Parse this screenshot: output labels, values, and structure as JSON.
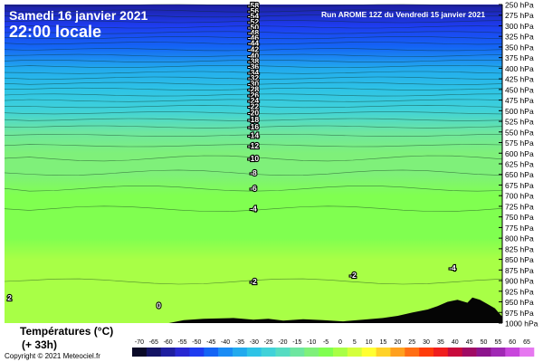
{
  "header": {
    "date": "Samedi 16 janvier 2021",
    "time": "22:00 locale",
    "run": "Run AROME 12Z du Vendredi 15 janvier 2021"
  },
  "footer": {
    "variable": "Températures (°C)",
    "lead": "(+ 33h)",
    "copyright": "Copyright © 2021 Meteociel.fr"
  },
  "chart_data": {
    "type": "heatmap",
    "title": "Températures (°C)",
    "yunit": "hPa",
    "y_levels": [
      250,
      275,
      300,
      325,
      350,
      375,
      400,
      425,
      450,
      475,
      500,
      525,
      550,
      575,
      600,
      625,
      650,
      675,
      700,
      725,
      750,
      775,
      800,
      825,
      850,
      875,
      900,
      925,
      950,
      975,
      1000
    ],
    "y_tick_labels": [
      "250 hPa",
      "275 hPa",
      "300 hPa",
      "325 hPa",
      "350 hPa",
      "375 hPa",
      "400 hPa",
      "425 hPa",
      "450 hPa",
      "475 hPa",
      "500 hPa",
      "525 hPa",
      "550 hPa",
      "575 hPa",
      "600 hPa",
      "625 hPa",
      "650 hPa",
      "675 hPa",
      "700 hPa",
      "725 hPa",
      "750 hPa",
      "775 hPa",
      "800 hPa",
      "825 hPa",
      "850 hPa",
      "875 hPa",
      "900 hPa",
      "925 hPa",
      "950 hPa",
      "975 hPa",
      "1000 hPa"
    ],
    "ylim": [
      250,
      1000
    ],
    "xlim": [
      0,
      1
    ],
    "color_scale": {
      "values": [
        -70,
        -65,
        -60,
        -55,
        -50,
        -45,
        -40,
        -35,
        -30,
        -25,
        -20,
        -15,
        -10,
        -5,
        0,
        5,
        10,
        15,
        20,
        25,
        30,
        35,
        40,
        45,
        50,
        55,
        60,
        65
      ],
      "labels": [
        "-70",
        "-65",
        "-60",
        "-55",
        "-50",
        "-45",
        "-40",
        "-35",
        "-30",
        "-25",
        "-20",
        "-15",
        "-10",
        "-5",
        "0",
        "5",
        "10",
        "15",
        "20",
        "25",
        "30",
        "35",
        "40",
        "45",
        "50",
        "55",
        "60",
        "65"
      ],
      "colors": [
        "#0a0a28",
        "#141464",
        "#1e1ea0",
        "#2828d2",
        "#1e3cf0",
        "#1464f5",
        "#1a8cf5",
        "#22aaee",
        "#2ec3e6",
        "#40d2d9",
        "#56dcc2",
        "#6ee6a0",
        "#7ff07a",
        "#80ff50",
        "#a8ff46",
        "#d4ff3c",
        "#ffff32",
        "#ffd228",
        "#ffa01e",
        "#ff6e14",
        "#ff3c0a",
        "#f01e1e",
        "#c80a3c",
        "#a00a64",
        "#8c148c",
        "#a028b4",
        "#c846dc",
        "#e678f0"
      ]
    },
    "level_temperatures": [
      {
        "p": 250,
        "t": -58
      },
      {
        "p": 300,
        "t": -52
      },
      {
        "p": 350,
        "t": -44
      },
      {
        "p": 400,
        "t": -36
      },
      {
        "p": 450,
        "t": -29
      },
      {
        "p": 500,
        "t": -23
      },
      {
        "p": 550,
        "t": -17
      },
      {
        "p": 600,
        "t": -12
      },
      {
        "p": 650,
        "t": -9
      },
      {
        "p": 700,
        "t": -7
      },
      {
        "p": 750,
        "t": -4
      },
      {
        "p": 800,
        "t": -3
      },
      {
        "p": 850,
        "t": -2
      },
      {
        "p": 900,
        "t": -2
      },
      {
        "p": 950,
        "t": -1
      },
      {
        "p": 1000,
        "t": 0
      }
    ],
    "contour_labels": [
      {
        "x": 0.5,
        "p": 252,
        "text": "-58"
      },
      {
        "x": 0.5,
        "p": 265,
        "text": "-56"
      },
      {
        "x": 0.5,
        "p": 277,
        "text": "-54"
      },
      {
        "x": 0.5,
        "p": 290,
        "text": "-52"
      },
      {
        "x": 0.5,
        "p": 303,
        "text": "-50"
      },
      {
        "x": 0.5,
        "p": 316,
        "text": "-48"
      },
      {
        "x": 0.5,
        "p": 328,
        "text": "-46"
      },
      {
        "x": 0.5,
        "p": 341,
        "text": "-44"
      },
      {
        "x": 0.5,
        "p": 356,
        "text": "-42"
      },
      {
        "x": 0.5,
        "p": 370,
        "text": "-40"
      },
      {
        "x": 0.5,
        "p": 383,
        "text": "-38"
      },
      {
        "x": 0.5,
        "p": 396,
        "text": "-36"
      },
      {
        "x": 0.5,
        "p": 410,
        "text": "-34"
      },
      {
        "x": 0.5,
        "p": 423,
        "text": "-32"
      },
      {
        "x": 0.5,
        "p": 436,
        "text": "-30"
      },
      {
        "x": 0.5,
        "p": 449,
        "text": "-28"
      },
      {
        "x": 0.5,
        "p": 463,
        "text": "-26"
      },
      {
        "x": 0.5,
        "p": 476,
        "text": "-24"
      },
      {
        "x": 0.5,
        "p": 490,
        "text": "-22"
      },
      {
        "x": 0.5,
        "p": 505,
        "text": "-20"
      },
      {
        "x": 0.5,
        "p": 521,
        "text": "-18"
      },
      {
        "x": 0.5,
        "p": 538,
        "text": "-16"
      },
      {
        "x": 0.5,
        "p": 558,
        "text": "-14"
      },
      {
        "x": 0.5,
        "p": 582,
        "text": "-12"
      },
      {
        "x": 0.5,
        "p": 612,
        "text": "-10"
      },
      {
        "x": 0.5,
        "p": 646,
        "text": "-8"
      },
      {
        "x": 0.5,
        "p": 683,
        "text": "-6"
      },
      {
        "x": 0.5,
        "p": 731,
        "text": "-4"
      },
      {
        "x": 0.5,
        "p": 902,
        "text": "-2"
      },
      {
        "x": 0.7,
        "p": 887,
        "text": "-2"
      },
      {
        "x": 0.9,
        "p": 870,
        "text": "-4"
      },
      {
        "x": 0.31,
        "p": 958,
        "text": "0"
      },
      {
        "x": 0.01,
        "p": 940,
        "text": "2"
      }
    ]
  }
}
